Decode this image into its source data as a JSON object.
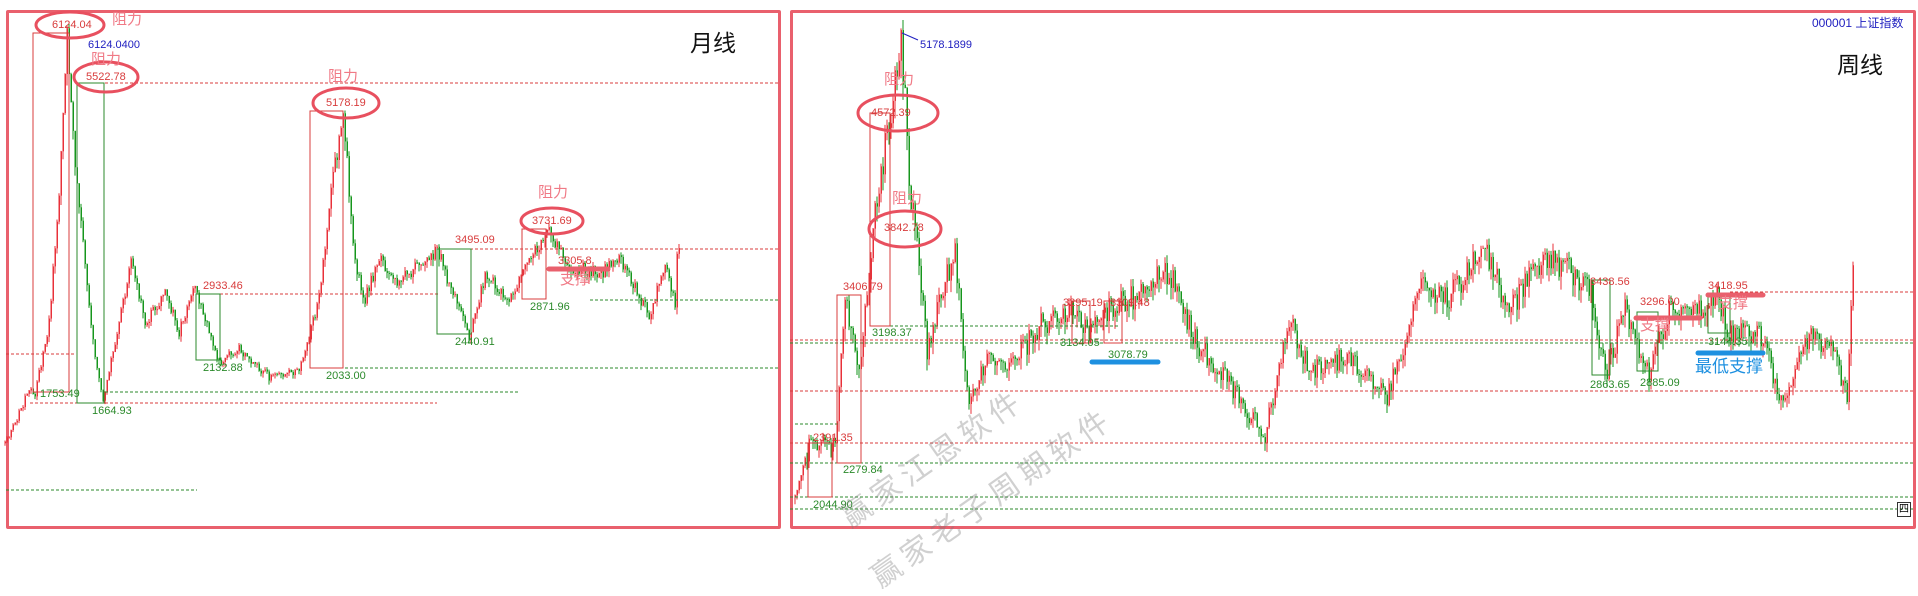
{
  "colors": {
    "up": "#e8313a",
    "down": "#16961c",
    "panel_border": "#e9606d",
    "resistance": "#d83c3c",
    "support": "#2b8a2b",
    "highlight_blue": "#1e90e0"
  },
  "watermark": [
    "赢家江恩软件",
    "赢家老子周期软件"
  ],
  "chart_data": [
    {
      "type": "candlestick",
      "title": "月线",
      "bars": 338,
      "path": [
        [
          0,
          1150
        ],
        [
          5,
          1400
        ],
        [
          12,
          1800
        ],
        [
          15,
          1750
        ],
        [
          22,
          2600
        ],
        [
          27,
          4200
        ],
        [
          31,
          6124.04
        ],
        [
          35,
          4500
        ],
        [
          40,
          3300
        ],
        [
          45,
          2200
        ],
        [
          49,
          1664.93
        ],
        [
          55,
          2400
        ],
        [
          63,
          3350
        ],
        [
          70,
          2600
        ],
        [
          80,
          3000
        ],
        [
          87,
          2500
        ],
        [
          95,
          3050
        ],
        [
          107,
          2132.88
        ],
        [
          117,
          2300
        ],
        [
          132,
          1950
        ],
        [
          147,
          2033.0
        ],
        [
          157,
          2900
        ],
        [
          162,
          4000
        ],
        [
          169,
          5178.19
        ],
        [
          175,
          3300
        ],
        [
          180,
          2900
        ],
        [
          187,
          3400
        ],
        [
          197,
          3100
        ],
        [
          216,
          3495.09
        ],
        [
          232,
          2440.91
        ],
        [
          240,
          3200
        ],
        [
          252,
          2900
        ],
        [
          262,
          3400
        ],
        [
          271,
          3731.69
        ],
        [
          282,
          3300
        ],
        [
          297,
          3200
        ],
        [
          307,
          3400
        ],
        [
          322,
          2700
        ],
        [
          330,
          3300
        ],
        [
          335,
          2850
        ],
        [
          336,
          3400
        ],
        [
          337,
          3600
        ]
      ],
      "peak_label": "6124.0400",
      "resistance": [
        {
          "label": "阻力",
          "value": "6124.04"
        },
        {
          "label": "阻力",
          "value": "5522.78"
        },
        {
          "label": "阻力",
          "value": "5178.19"
        },
        {
          "label": "阻力",
          "value": "3731.69"
        }
      ],
      "levels": [
        "3495.09",
        "2933.46",
        "2132.88",
        "2033.00",
        "1753.49",
        "1664.93",
        "2440.91",
        "2871.96",
        "3305.8"
      ],
      "support_label": "支撑"
    },
    {
      "type": "candlestick",
      "title": "周线",
      "symbol": "000001 上证指数",
      "bars": 530,
      "path": [
        [
          0,
          2044.9
        ],
        [
          7,
          2391.35
        ],
        [
          20,
          2400
        ],
        [
          25,
          3406.79
        ],
        [
          32,
          2900
        ],
        [
          40,
          4000
        ],
        [
          47,
          4572.39
        ],
        [
          53,
          5178.19
        ],
        [
          58,
          4000
        ],
        [
          61,
          3842.78
        ],
        [
          66,
          3000
        ],
        [
          75,
          3500
        ],
        [
          80,
          3700
        ],
        [
          87,
          2650
        ],
        [
          97,
          3000
        ],
        [
          107,
          2900
        ],
        [
          122,
          3200
        ],
        [
          138,
          3295.19
        ],
        [
          147,
          3134.05
        ],
        [
          157,
          3309.48
        ],
        [
          170,
          3400
        ],
        [
          187,
          3580
        ],
        [
          200,
          3100
        ],
        [
          212,
          2900
        ],
        [
          235,
          2450
        ],
        [
          247,
          3270
        ],
        [
          257,
          2900
        ],
        [
          277,
          3000
        ],
        [
          296,
          2700
        ],
        [
          312,
          3450
        ],
        [
          327,
          3400
        ],
        [
          345,
          3720
        ],
        [
          357,
          3300
        ],
        [
          373,
          3650
        ],
        [
          386,
          3600
        ],
        [
          398,
          3438.56
        ],
        [
          405,
          2863.65
        ],
        [
          415,
          3300
        ],
        [
          427,
          2885.09
        ],
        [
          437,
          3296.0
        ],
        [
          452,
          3300
        ],
        [
          461,
          3418.95
        ],
        [
          467,
          3144.35
        ],
        [
          482,
          3150
        ],
        [
          495,
          2650
        ],
        [
          507,
          3160
        ],
        [
          520,
          3000
        ],
        [
          526,
          2720
        ],
        [
          528,
          3400
        ],
        [
          529,
          3650
        ]
      ],
      "peak_label": "5178.1899",
      "resistance": [
        {
          "label": "阻力",
          "value": "4572.39"
        },
        {
          "label": "阻力",
          "value": "3842.78"
        }
      ],
      "levels": [
        "3406.79",
        "3198.37",
        "2391.35",
        "2279.84",
        "2044.90",
        "3295.19",
        "3309.48",
        "3134.05",
        "3078.79",
        "3438.56",
        "3296.00",
        "3418.95",
        "3144.35",
        "2863.65",
        "2885.09"
      ],
      "support_labels": [
        "支撑",
        "支撑"
      ],
      "lowest_support_label": "最低支撑",
      "corner_button": "四"
    }
  ]
}
